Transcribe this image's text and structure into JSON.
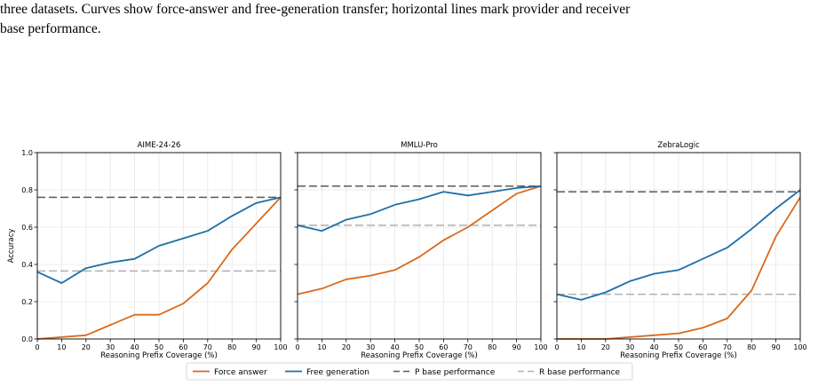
{
  "caption": {
    "line1": "three datasets. Curves show force-answer and free-generation transfer; horizontal lines mark provider and receiver",
    "line2": "base performance."
  },
  "legend": {
    "force_answer": "Force answer",
    "free_generation": "Free generation",
    "p_base": "P base performance",
    "r_base": "R base performance"
  },
  "colors": {
    "force_answer": "#d96a1c",
    "free_generation": "#1f6fa6",
    "p_base": "#595959",
    "r_base": "#b0b0b0"
  },
  "chart_data": [
    {
      "type": "line",
      "title": "AIME-24-26",
      "xlabel": "Reasoning Prefix Coverage (%)",
      "ylabel": "Accuracy",
      "x": [
        0,
        10,
        20,
        30,
        40,
        50,
        60,
        70,
        80,
        90,
        100
      ],
      "xlim": [
        0,
        100
      ],
      "ylim": [
        0,
        1
      ],
      "xticks": [
        "0",
        "10",
        "20",
        "30",
        "40",
        "50",
        "60",
        "70",
        "80",
        "90",
        "100"
      ],
      "yticks": [
        "0.0",
        "0.2",
        "0.4",
        "0.6",
        "0.8",
        "1.0"
      ],
      "grid": true,
      "series": [
        {
          "name": "Force answer",
          "values": [
            0.0,
            0.01,
            0.02,
            0.075,
            0.13,
            0.13,
            0.19,
            0.3,
            0.48,
            0.62,
            0.76
          ]
        },
        {
          "name": "Free generation",
          "values": [
            0.36,
            0.3,
            0.38,
            0.41,
            0.43,
            0.5,
            0.54,
            0.58,
            0.66,
            0.73,
            0.76
          ]
        }
      ],
      "p_base": 0.76,
      "r_base": 0.365
    },
    {
      "type": "line",
      "title": "MMLU-Pro",
      "xlabel": "Reasoning Prefix Coverage (%)",
      "ylabel": "",
      "x": [
        0,
        10,
        20,
        30,
        40,
        50,
        60,
        70,
        80,
        90,
        100
      ],
      "xlim": [
        0,
        100
      ],
      "ylim": [
        0,
        1
      ],
      "xticks": [
        "0",
        "10",
        "20",
        "30",
        "40",
        "50",
        "60",
        "70",
        "80",
        "90",
        "100"
      ],
      "yticks": [],
      "grid": true,
      "series": [
        {
          "name": "Force answer",
          "values": [
            0.24,
            0.27,
            0.32,
            0.34,
            0.37,
            0.44,
            0.53,
            0.6,
            0.69,
            0.78,
            0.82
          ]
        },
        {
          "name": "Free generation",
          "values": [
            0.61,
            0.58,
            0.64,
            0.67,
            0.72,
            0.75,
            0.79,
            0.77,
            0.79,
            0.81,
            0.82
          ]
        }
      ],
      "p_base": 0.82,
      "r_base": 0.61
    },
    {
      "type": "line",
      "title": "ZebraLogic",
      "xlabel": "Reasoning Prefix Coverage (%)",
      "ylabel": "",
      "x": [
        0,
        10,
        20,
        30,
        40,
        50,
        60,
        70,
        80,
        90,
        100
      ],
      "xlim": [
        0,
        100
      ],
      "ylim": [
        0,
        1
      ],
      "xticks": [
        "0",
        "10",
        "20",
        "30",
        "40",
        "50",
        "60",
        "70",
        "80",
        "90",
        "100"
      ],
      "yticks": [],
      "grid": true,
      "series": [
        {
          "name": "Force answer",
          "values": [
            0.0,
            0.0,
            0.0,
            0.01,
            0.02,
            0.03,
            0.06,
            0.11,
            0.26,
            0.55,
            0.76
          ]
        },
        {
          "name": "Free generation",
          "values": [
            0.24,
            0.21,
            0.25,
            0.31,
            0.35,
            0.37,
            0.43,
            0.49,
            0.59,
            0.7,
            0.8
          ]
        }
      ],
      "p_base": 0.79,
      "r_base": 0.24
    }
  ]
}
